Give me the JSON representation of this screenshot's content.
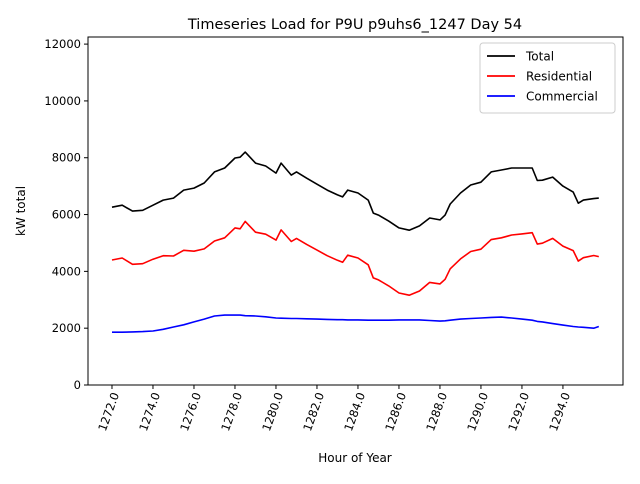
{
  "chart_data": {
    "type": "line",
    "title": "Timeseries Load for P9U p9uhs6_1247  Day 54",
    "xlabel": "Hour of Year",
    "ylabel": "kW total",
    "xlim": [
      1270.83,
      1296.93
    ],
    "ylim": [
      0,
      12250
    ],
    "xticks": [
      1272,
      1274,
      1276,
      1278,
      1280,
      1282,
      1284,
      1286,
      1288,
      1290,
      1292,
      1294
    ],
    "xtick_labels": [
      "1272.0",
      "1274.0",
      "1276.0",
      "1278.0",
      "1280.0",
      "1282.0",
      "1284.0",
      "1286.0",
      "1288.0",
      "1290.0",
      "1292.0",
      "1294.0"
    ],
    "yticks": [
      0,
      2000,
      4000,
      6000,
      8000,
      10000,
      12000
    ],
    "ytick_labels": [
      "0",
      "2000",
      "4000",
      "6000",
      "8000",
      "10000",
      "12000"
    ],
    "grid": false,
    "legend_position": "top-right",
    "x": [
      1272.0,
      1272.5,
      1273.0,
      1273.5,
      1274.0,
      1274.5,
      1275.0,
      1275.5,
      1276.0,
      1276.5,
      1277.0,
      1277.5,
      1278.0,
      1278.25,
      1278.5,
      1279.0,
      1279.5,
      1280.0,
      1280.25,
      1280.75,
      1281.0,
      1281.5,
      1282.0,
      1282.5,
      1283.0,
      1283.25,
      1283.5,
      1284.0,
      1284.5,
      1284.75,
      1285.0,
      1285.5,
      1286.0,
      1286.5,
      1287.0,
      1287.5,
      1288.0,
      1288.25,
      1288.5,
      1289.0,
      1289.5,
      1290.0,
      1290.5,
      1291.0,
      1291.5,
      1292.0,
      1292.5,
      1292.75,
      1293.0,
      1293.5,
      1294.0,
      1294.5,
      1294.75,
      1295.0,
      1295.5,
      1295.75
    ],
    "series": [
      {
        "name": "Total",
        "color": "#000000",
        "values": [
          6260,
          6330,
          6120,
          6150,
          6330,
          6510,
          6580,
          6860,
          6930,
          7110,
          7500,
          7640,
          7990,
          8020,
          8200,
          7810,
          7710,
          7460,
          7810,
          7390,
          7500,
          7280,
          7070,
          6860,
          6690,
          6620,
          6860,
          6760,
          6510,
          6050,
          5980,
          5770,
          5530,
          5450,
          5600,
          5880,
          5810,
          5980,
          6370,
          6760,
          7040,
          7140,
          7500,
          7570,
          7640,
          7640,
          7640,
          7200,
          7210,
          7320,
          7000,
          6790,
          6400,
          6510,
          6560,
          6580
        ]
      },
      {
        "name": "Residential",
        "color": "#ff0000",
        "values": [
          4400,
          4470,
          4250,
          4270,
          4430,
          4550,
          4540,
          4740,
          4710,
          4790,
          5070,
          5180,
          5530,
          5500,
          5760,
          5380,
          5310,
          5100,
          5460,
          5050,
          5160,
          4950,
          4750,
          4550,
          4390,
          4320,
          4570,
          4470,
          4230,
          3770,
          3700,
          3490,
          3240,
          3160,
          3310,
          3610,
          3560,
          3720,
          4090,
          4440,
          4700,
          4780,
          5120,
          5180,
          5280,
          5320,
          5360,
          4960,
          4990,
          5160,
          4890,
          4730,
          4360,
          4480,
          4560,
          4520
        ]
      },
      {
        "name": "Commercial",
        "color": "#0000ff",
        "values": [
          1860,
          1860,
          1870,
          1880,
          1900,
          1960,
          2040,
          2120,
          2220,
          2320,
          2430,
          2460,
          2460,
          2460,
          2440,
          2430,
          2400,
          2360,
          2350,
          2340,
          2340,
          2330,
          2320,
          2310,
          2300,
          2300,
          2290,
          2290,
          2280,
          2280,
          2280,
          2280,
          2290,
          2290,
          2290,
          2270,
          2250,
          2260,
          2280,
          2320,
          2340,
          2360,
          2380,
          2390,
          2360,
          2320,
          2280,
          2240,
          2220,
          2160,
          2110,
          2060,
          2040,
          2030,
          2000,
          2060
        ]
      }
    ]
  }
}
